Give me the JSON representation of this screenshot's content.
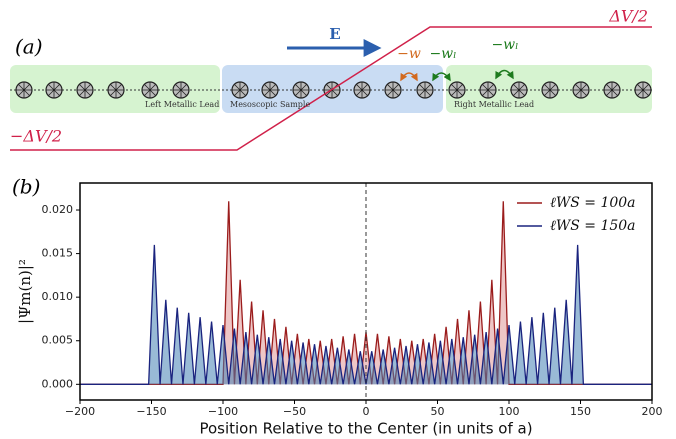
{
  "diagram": {
    "label": "(a)",
    "field": "E",
    "top_potential": "ΔV/2",
    "bottom_potential": "−ΔV/2",
    "hop_sample": "−w",
    "hop_left": "−wₗ",
    "hop_right": "−wₗ",
    "left_lead": "Left Metallic Lead",
    "sample": "Mesoscopic Sample",
    "right_lead": "Right Metallic Lead"
  },
  "chart_data": {
    "type": "line",
    "panel_label": "(b)",
    "x_label": "Position Relative to the Center (in units of a)",
    "y_label": "|Ψm(n)|²",
    "xlim": [
      -200,
      200
    ],
    "ylim": [
      -0.0018,
      0.0231
    ],
    "xticks": [
      {
        "value": -200,
        "label": "−200"
      },
      {
        "value": -150,
        "label": "−150"
      },
      {
        "value": -100,
        "label": "−100"
      },
      {
        "value": -50,
        "label": "−50"
      },
      0,
      50,
      100,
      150,
      200
    ],
    "yticks": [
      {
        "value": 0,
        "label": "0.000"
      },
      {
        "value": 0.005,
        "label": "0.005"
      },
      {
        "value": 0.01,
        "label": "0.010"
      },
      {
        "value": 0.015,
        "label": "0.015"
      },
      {
        "value": 0.02,
        "label": "0.020"
      }
    ],
    "vline": 0,
    "legend": "upper right",
    "fill": true,
    "x": [
      -200,
      -156,
      -152,
      -148,
      -144,
      -140,
      -136,
      -132,
      -128,
      -124,
      -120,
      -116,
      -112,
      -108,
      -104,
      -100,
      -96,
      -92,
      -88,
      -84,
      -80,
      -76,
      -72,
      -68,
      -64,
      -60,
      -56,
      -52,
      -48,
      -44,
      -40,
      -36,
      -32,
      -28,
      -24,
      -20,
      -16,
      -12,
      -8,
      -4,
      0,
      4,
      8,
      12,
      16,
      20,
      24,
      28,
      32,
      36,
      40,
      44,
      48,
      52,
      56,
      60,
      64,
      68,
      72,
      76,
      80,
      84,
      88,
      92,
      96,
      100,
      104,
      108,
      112,
      116,
      120,
      124,
      128,
      132,
      136,
      140,
      144,
      148,
      152,
      156,
      200
    ],
    "series": [
      {
        "name": "ℓWS = 100a",
        "color": "#9b1c1c",
        "fill_color": "rgba(205,92,92,0.35)",
        "values": [
          0,
          0,
          0,
          0,
          0,
          0,
          0,
          0,
          0,
          0,
          0,
          0,
          0,
          0,
          0,
          0,
          0.021,
          0,
          0.012,
          0,
          0.0095,
          0,
          0.0085,
          0,
          0.0075,
          0,
          0.0066,
          0,
          0.0058,
          0,
          0.0052,
          0,
          0.005,
          0,
          0.0052,
          0,
          0.0055,
          0,
          0.0058,
          0,
          0.006,
          0,
          0.0058,
          0,
          0.0055,
          0,
          0.0052,
          0,
          0.005,
          0,
          0.0052,
          0,
          0.0058,
          0,
          0.0066,
          0,
          0.0075,
          0,
          0.0085,
          0,
          0.0095,
          0,
          0.012,
          0,
          0.021,
          0,
          0,
          0,
          0,
          0,
          0,
          0,
          0,
          0,
          0,
          0,
          0,
          0,
          0,
          0,
          0
        ]
      },
      {
        "name": "ℓWS = 150a",
        "color": "#1a237e",
        "fill_color": "rgba(70,130,180,0.55)",
        "values": [
          0,
          0,
          0,
          0.016,
          0,
          0.0097,
          0,
          0.0088,
          0,
          0.0082,
          0,
          0.0077,
          0,
          0.0072,
          0,
          0.0068,
          0,
          0.0064,
          0,
          0.006,
          0,
          0.0057,
          0,
          0.0054,
          0,
          0.0052,
          0,
          0.005,
          0,
          0.0048,
          0,
          0.0046,
          0,
          0.0044,
          0,
          0.0042,
          0,
          0.004,
          0,
          0.0038,
          0,
          0.0038,
          0,
          0.004,
          0,
          0.0042,
          0,
          0.0044,
          0,
          0.0046,
          0,
          0.0048,
          0,
          0.005,
          0,
          0.0052,
          0,
          0.0054,
          0,
          0.0057,
          0,
          0.006,
          0,
          0.0064,
          0,
          0.0068,
          0,
          0.0072,
          0,
          0.0077,
          0,
          0.0082,
          0,
          0.0088,
          0,
          0.0097,
          0,
          0.016,
          0,
          0,
          0
        ]
      }
    ]
  }
}
